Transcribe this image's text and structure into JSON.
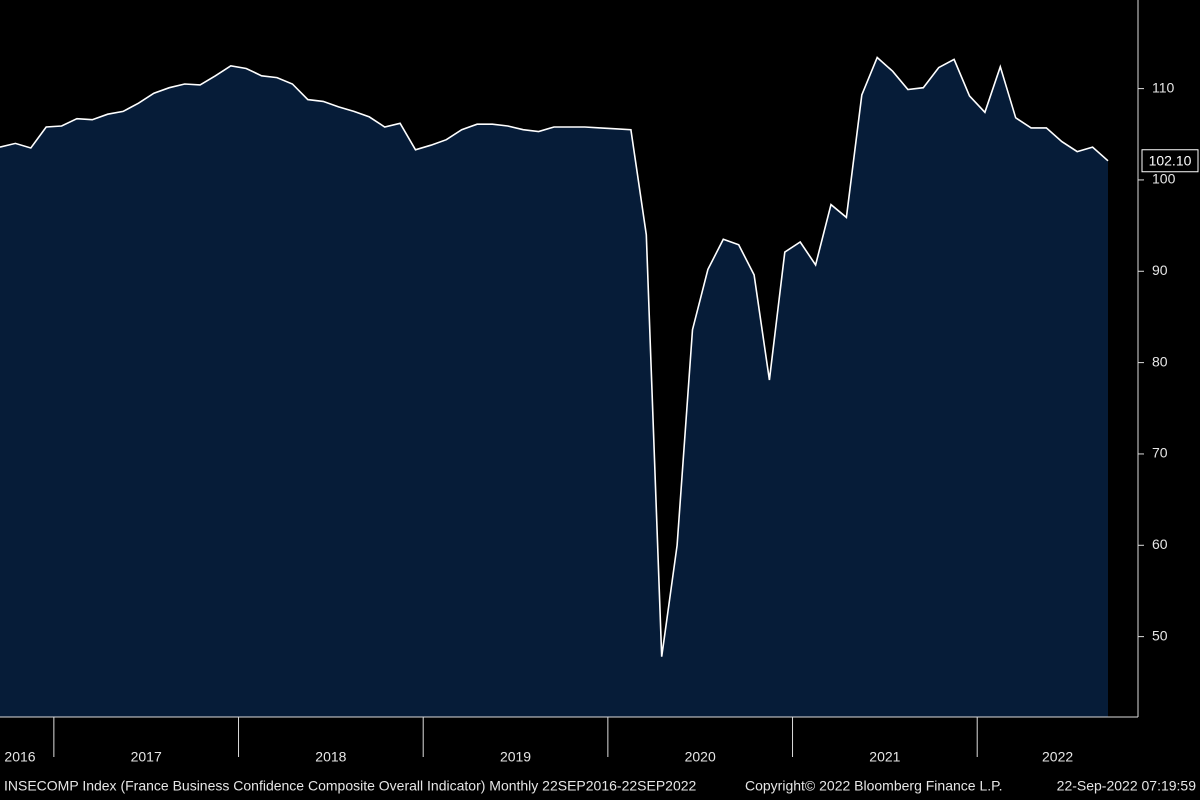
{
  "chart_data": {
    "type": "area",
    "categories": [
      "2016",
      null,
      null,
      null,
      "2017",
      null,
      null,
      null,
      null,
      null,
      null,
      null,
      null,
      null,
      null,
      null,
      "2018",
      null,
      null,
      null,
      null,
      null,
      null,
      null,
      null,
      null,
      null,
      null,
      "2019",
      null,
      null,
      null,
      null,
      null,
      null,
      null,
      null,
      null,
      null,
      null,
      "2020",
      null,
      null,
      null,
      null,
      null,
      null,
      null,
      null,
      null,
      null,
      null,
      "2021",
      null,
      null,
      null,
      null,
      null,
      null,
      null,
      null,
      null,
      null,
      null,
      "2022",
      null,
      null,
      null,
      null,
      null,
      null,
      null,
      null
    ],
    "values": [
      103.6,
      104.0,
      103.5,
      105.8,
      105.9,
      106.7,
      106.6,
      107.2,
      107.5,
      108.4,
      109.5,
      110.1,
      110.5,
      110.4,
      111.4,
      112.5,
      112.2,
      111.4,
      111.2,
      110.5,
      108.8,
      108.6,
      108.0,
      107.5,
      106.9,
      105.8,
      106.2,
      103.3,
      103.8,
      104.4,
      105.5,
      106.1,
      106.1,
      105.9,
      105.5,
      105.3,
      105.8,
      105.8,
      105.8,
      105.7,
      105.6,
      105.5,
      94.0,
      47.8,
      60.0,
      83.6,
      90.2,
      93.5,
      92.9,
      89.6,
      78.1,
      92.1,
      93.2,
      90.7,
      97.3,
      95.9,
      109.3,
      113.4,
      111.9,
      109.9,
      110.1,
      112.3,
      113.2,
      109.2,
      107.4,
      112.4,
      106.8,
      105.7,
      105.7,
      104.2,
      103.1,
      103.6,
      102.1
    ],
    "last_value_label": "102.10",
    "color": "#061c38",
    "line_color": "#ffffff",
    "ylim": [
      41.2,
      119.7
    ],
    "yticks": [
      50,
      60,
      70,
      80,
      90,
      100,
      110
    ],
    "y_axis_side": "right",
    "source": "INSECOMP Index (France Business Confidence Composite Overall Indicator)  Monthly 22SEP2016-22SEP2022",
    "copyright": "Copyright© 2022 Bloomberg Finance L.P.",
    "timestamp": "22-Sep-2022 07:19:59"
  }
}
